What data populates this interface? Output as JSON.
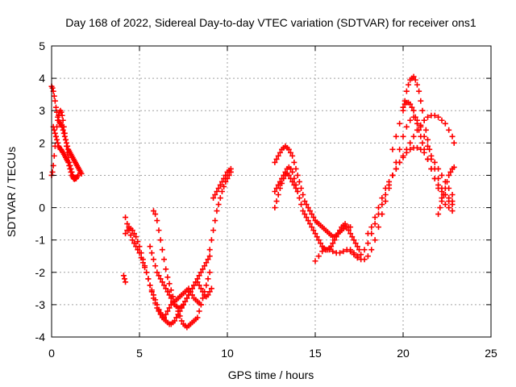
{
  "chart_data": {
    "type": "scatter",
    "title": "Day 168 of 2022, Sidereal Day-to-day VTEC variation (SDTVAR) for receiver ons1",
    "xlabel": "GPS time / hours",
    "ylabel": "SDTVAR / TECUs",
    "xlim": [
      0,
      25
    ],
    "ylim": [
      -4,
      5
    ],
    "xticks": [
      0,
      5,
      10,
      15,
      20,
      25
    ],
    "yticks": [
      -4,
      -3,
      -2,
      -1,
      0,
      1,
      2,
      3,
      4,
      5
    ],
    "grid": true,
    "marker": "+",
    "color": "#ff0000",
    "series": [
      {
        "x": [
          0.0,
          0.05,
          0.1,
          0.15,
          0.2,
          0.25,
          0.3,
          0.35,
          0.4,
          0.45,
          0.5,
          0.55,
          0.6,
          0.65,
          0.7,
          0.75,
          0.8,
          0.85,
          0.9,
          0.95,
          1.0,
          1.05,
          1.1,
          1.15,
          1.2,
          1.25,
          1.3,
          1.35,
          1.4,
          1.45,
          1.5,
          1.55,
          1.6,
          1.65,
          1.7
        ],
        "y": [
          3.75,
          3.7,
          3.6,
          3.45,
          3.3,
          3.1,
          2.95,
          2.8,
          2.7,
          2.65,
          2.6,
          2.55,
          2.5,
          2.4,
          2.3,
          2.2,
          2.1,
          2.0,
          1.9,
          1.8,
          1.75,
          1.7,
          1.65,
          1.6,
          1.55,
          1.5,
          1.45,
          1.4,
          1.35,
          1.3,
          1.25,
          1.2,
          1.15,
          1.1,
          1.05
        ]
      },
      {
        "x": [
          0.0,
          0.05,
          0.1,
          0.15,
          0.2,
          0.25,
          0.3,
          0.35,
          0.4,
          0.45,
          0.5,
          0.55,
          0.6,
          0.65,
          0.7,
          0.75,
          0.8,
          0.85,
          0.9,
          0.95,
          1.0,
          1.05,
          1.1,
          1.15,
          1.2,
          1.25,
          1.3,
          1.35,
          1.4,
          1.45,
          1.5
        ],
        "y": [
          1.0,
          1.1,
          1.3,
          1.6,
          1.9,
          2.2,
          2.5,
          2.7,
          2.85,
          2.95,
          3.0,
          2.95,
          2.85,
          2.7,
          2.5,
          2.3,
          2.1,
          1.9,
          1.7,
          1.55,
          1.4,
          1.3,
          1.2,
          1.1,
          1.0,
          0.95,
          0.92,
          0.9,
          0.9,
          0.95,
          1.0
        ]
      },
      {
        "x": [
          0.1,
          0.15,
          0.2,
          0.25,
          0.3,
          0.35,
          0.4,
          0.45,
          0.5,
          0.55,
          0.6,
          0.65,
          0.7,
          0.75,
          0.8,
          0.85,
          0.9,
          0.95,
          1.0,
          1.05,
          1.1,
          1.15,
          1.2,
          1.25,
          1.3
        ],
        "y": [
          2.5,
          2.4,
          2.3,
          2.2,
          2.1,
          2.0,
          1.9,
          1.85,
          1.8,
          1.8,
          1.75,
          1.7,
          1.65,
          1.6,
          1.55,
          1.5,
          1.45,
          1.4,
          1.3,
          1.2,
          1.1,
          1.0,
          0.95,
          0.9,
          0.88
        ]
      },
      {
        "x": [
          4.2,
          4.3,
          4.4,
          4.5,
          4.6,
          4.7,
          4.8,
          4.9,
          5.0,
          5.1,
          5.2,
          5.3,
          5.4,
          5.5,
          5.6,
          5.7,
          5.8,
          5.9,
          6.0,
          6.1,
          6.2,
          6.3,
          6.4,
          6.5,
          6.6,
          6.7,
          6.8,
          6.9,
          7.0,
          7.1,
          7.2,
          7.3,
          7.4,
          7.5,
          7.6,
          7.7,
          7.8,
          7.9,
          8.0,
          8.1,
          8.2,
          8.3,
          8.4,
          8.5,
          8.6,
          8.7,
          8.8,
          8.9,
          9.0
        ],
        "y": [
          -0.3,
          -0.5,
          -0.7,
          -0.85,
          -1.0,
          -1.1,
          -1.2,
          -1.3,
          -1.4,
          -1.55,
          -1.7,
          -1.85,
          -2.0,
          -2.2,
          -2.4,
          -2.6,
          -2.8,
          -2.95,
          -3.1,
          -3.2,
          -3.3,
          -3.4,
          -3.45,
          -3.5,
          -3.55,
          -3.6,
          -3.6,
          -3.55,
          -3.5,
          -3.4,
          -3.3,
          -3.2,
          -3.1,
          -3.0,
          -2.9,
          -2.8,
          -2.7,
          -2.6,
          -2.5,
          -2.4,
          -2.3,
          -2.2,
          -2.1,
          -2.0,
          -1.9,
          -1.8,
          -1.7,
          -1.6,
          -1.5
        ]
      },
      {
        "x": [
          4.2,
          4.3,
          4.4,
          4.5,
          4.6,
          4.7,
          4.8,
          4.9,
          5.0,
          5.1,
          5.2,
          5.3,
          5.4,
          5.5,
          5.6,
          5.7,
          5.8,
          5.9,
          6.0,
          6.1,
          6.2,
          6.3,
          6.4,
          6.5,
          6.6,
          6.7,
          6.8,
          6.9,
          7.0,
          7.1,
          7.2,
          7.3,
          7.4,
          7.5,
          7.6,
          7.7,
          7.8,
          7.9,
          8.0,
          8.1,
          8.2,
          8.3,
          8.4,
          8.5
        ],
        "y": [
          -0.8,
          -0.7,
          -0.6,
          -0.65,
          -0.7,
          -0.8,
          -0.9,
          -1.05,
          -1.2,
          -1.4,
          -1.6,
          -1.8,
          -2.0,
          -2.2,
          -2.4,
          -2.55,
          -2.7,
          -2.85,
          -3.0,
          -3.15,
          -3.25,
          -3.35,
          -3.4,
          -3.3,
          -3.2,
          -3.1,
          -3.0,
          -2.95,
          -2.9,
          -2.85,
          -2.8,
          -2.75,
          -2.7,
          -2.65,
          -2.6,
          -2.55,
          -2.5,
          -2.6,
          -2.7,
          -2.8,
          -2.85,
          -2.9,
          -2.95,
          -3.0
        ]
      },
      {
        "x": [
          5.6,
          5.7,
          5.8,
          5.9,
          6.0,
          6.1,
          6.2,
          6.3,
          6.4,
          6.5,
          6.6,
          6.7,
          6.8,
          6.9,
          7.0,
          7.1,
          7.2,
          7.3,
          7.4,
          7.5,
          7.6,
          7.7,
          7.8,
          7.9,
          8.0,
          8.1,
          8.2,
          8.3,
          8.4,
          8.5,
          8.6,
          8.7,
          8.8,
          8.9,
          9.0,
          9.1
        ],
        "y": [
          -1.2,
          -1.4,
          -1.6,
          -1.8,
          -2.0,
          -2.1,
          -2.2,
          -2.3,
          -2.4,
          -2.5,
          -2.6,
          -2.7,
          -2.8,
          -2.9,
          -3.0,
          -3.05,
          -3.1,
          -3.1,
          -3.05,
          -3.0,
          -2.9,
          -2.8,
          -2.7,
          -2.6,
          -2.5,
          -2.4,
          -2.3,
          -2.3,
          -2.4,
          -2.5,
          -2.6,
          -2.7,
          -2.75,
          -2.7,
          -2.6,
          -2.5
        ]
      },
      {
        "x": [
          5.8,
          5.9,
          6.0,
          6.1,
          6.2,
          6.3,
          6.4,
          6.5,
          6.6,
          6.7,
          6.8,
          6.9,
          7.0,
          7.1,
          7.2,
          7.3,
          7.4,
          7.5,
          7.6,
          7.7,
          7.8,
          7.9,
          8.0,
          8.1,
          8.2,
          8.3,
          8.4,
          8.5,
          8.6,
          8.7,
          8.8,
          8.9,
          9.0
        ],
        "y": [
          -0.1,
          -0.2,
          -0.4,
          -0.7,
          -1.0,
          -1.3,
          -1.6,
          -1.9,
          -2.15,
          -2.35,
          -2.55,
          -2.75,
          -2.9,
          -3.05,
          -3.2,
          -3.35,
          -3.5,
          -3.6,
          -3.65,
          -3.7,
          -3.65,
          -3.6,
          -3.55,
          -3.5,
          -3.45,
          -3.4,
          -3.2,
          -3.0,
          -2.8,
          -2.6,
          -2.4,
          -2.2,
          -2.0
        ]
      },
      {
        "x": [
          4.1,
          4.15,
          4.2
        ],
        "y": [
          -2.1,
          -2.2,
          -2.3
        ]
      },
      {
        "x": [
          9.2,
          9.3,
          9.4,
          9.5,
          9.6,
          9.7,
          9.8,
          9.9,
          10.0,
          10.1,
          10.2
        ],
        "y": [
          0.3,
          0.4,
          0.5,
          0.6,
          0.7,
          0.8,
          0.9,
          1.0,
          1.1,
          1.15,
          1.2
        ]
      },
      {
        "x": [
          9.0,
          9.1,
          9.2,
          9.3,
          9.4,
          9.5,
          9.6,
          9.7,
          9.8,
          9.9,
          10.0,
          10.1,
          10.2
        ],
        "y": [
          -1.3,
          -1.0,
          -0.7,
          -0.4,
          -0.1,
          0.1,
          0.3,
          0.5,
          0.65,
          0.8,
          0.9,
          1.0,
          1.1
        ]
      },
      {
        "x": [
          12.7,
          12.8,
          12.9,
          13.0,
          13.1,
          13.2,
          13.3,
          13.4,
          13.5,
          13.6,
          13.7,
          13.8,
          13.9,
          14.0,
          14.1,
          14.2,
          14.3,
          14.4,
          14.5,
          14.6,
          14.7,
          14.8,
          14.9,
          15.0,
          15.1,
          15.2,
          15.3,
          15.4,
          15.5,
          15.6,
          15.7,
          15.8,
          15.9,
          16.0,
          16.1,
          16.2,
          16.3,
          16.4,
          16.5,
          16.6,
          16.7,
          16.8,
          16.9,
          17.0
        ],
        "y": [
          1.4,
          1.5,
          1.6,
          1.7,
          1.8,
          1.85,
          1.9,
          1.85,
          1.8,
          1.7,
          1.6,
          1.4,
          1.2,
          1.0,
          0.8,
          0.6,
          0.4,
          0.2,
          0.1,
          0.0,
          -0.1,
          -0.2,
          -0.3,
          -0.4,
          -0.45,
          -0.5,
          -0.55,
          -0.6,
          -0.65,
          -0.7,
          -0.75,
          -0.8,
          -0.85,
          -0.9,
          -0.9,
          -0.85,
          -0.8,
          -0.75,
          -0.7,
          -0.65,
          -0.6,
          -0.6,
          -0.6,
          -0.6
        ]
      },
      {
        "x": [
          12.7,
          12.8,
          12.9,
          13.0,
          13.1,
          13.2,
          13.3,
          13.4,
          13.5,
          13.6,
          13.7,
          13.8,
          13.9,
          14.0,
          14.1,
          14.2,
          14.3,
          14.4,
          14.5,
          14.6,
          14.7,
          14.8,
          14.9,
          15.0,
          15.1,
          15.2,
          15.3,
          15.4,
          15.5,
          15.6,
          15.7,
          15.8,
          15.9,
          16.0,
          16.1,
          16.2,
          16.3,
          16.4,
          16.5,
          16.6,
          16.7,
          16.8,
          16.9,
          17.0,
          17.1,
          17.2,
          17.3,
          17.4,
          17.5
        ],
        "y": [
          0.5,
          0.6,
          0.7,
          0.8,
          0.9,
          1.0,
          1.1,
          1.2,
          1.25,
          1.2,
          1.1,
          0.9,
          0.7,
          0.5,
          0.3,
          0.1,
          -0.1,
          -0.2,
          -0.3,
          -0.4,
          -0.5,
          -0.6,
          -0.7,
          -0.8,
          -0.9,
          -1.0,
          -1.1,
          -1.2,
          -1.25,
          -1.3,
          -1.3,
          -1.25,
          -1.2,
          -1.1,
          -1.0,
          -0.9,
          -0.8,
          -0.7,
          -0.6,
          -0.55,
          -0.5,
          -0.6,
          -0.7,
          -0.8,
          -0.9,
          -1.0,
          -1.1,
          -1.2,
          -1.3
        ]
      },
      {
        "x": [
          12.7,
          12.8,
          12.9,
          13.0,
          13.1,
          13.2,
          13.3,
          13.4,
          13.5,
          13.6,
          13.7,
          13.8,
          13.9,
          14.0
        ],
        "y": [
          0.0,
          0.2,
          0.4,
          0.6,
          0.75,
          0.9,
          1.0,
          1.05,
          1.0,
          0.9,
          0.8,
          0.7,
          0.6,
          0.5
        ]
      },
      {
        "x": [
          15.0,
          15.2,
          15.4,
          15.6,
          15.8,
          16.0,
          16.2,
          16.4,
          16.6,
          16.8,
          17.0,
          17.2,
          17.4,
          17.6,
          17.8,
          18.0,
          18.2,
          18.4,
          18.6,
          18.8,
          19.0,
          19.2,
          19.4,
          19.6,
          19.8,
          20.0,
          20.2,
          20.4,
          20.6,
          20.8,
          21.0,
          21.2,
          21.4,
          21.6,
          21.8,
          22.0,
          22.2,
          22.4,
          22.6,
          22.8
        ],
        "y": [
          -1.65,
          -1.5,
          -1.35,
          -1.3,
          -1.3,
          -1.35,
          -1.4,
          -1.4,
          -1.35,
          -1.3,
          -1.35,
          -1.45,
          -1.55,
          -1.6,
          -1.6,
          -1.5,
          -1.3,
          -1.0,
          -0.6,
          -0.2,
          0.2,
          0.6,
          1.0,
          1.4,
          1.8,
          2.2,
          2.5,
          2.7,
          2.8,
          2.7,
          2.5,
          2.2,
          1.9,
          1.6,
          1.4,
          1.2,
          1.0,
          0.8,
          0.6,
          0.4
        ]
      },
      {
        "x": [
          17.0,
          17.2,
          17.4,
          17.6,
          17.8,
          18.0,
          18.2,
          18.4,
          18.6,
          18.8,
          19.0,
          19.2,
          19.4,
          19.6,
          19.8,
          20.0,
          20.2,
          20.4,
          20.6,
          20.8,
          21.0,
          21.2,
          21.4,
          21.6,
          21.8,
          22.0,
          22.2,
          22.4,
          22.6,
          22.8,
          22.9
        ],
        "y": [
          -1.3,
          -1.4,
          -1.5,
          -1.45,
          -1.3,
          -1.1,
          -0.8,
          -0.5,
          -0.2,
          0.1,
          0.4,
          0.7,
          1.0,
          1.2,
          1.4,
          1.6,
          1.8,
          2.0,
          2.2,
          2.4,
          2.55,
          2.7,
          2.8,
          2.85,
          2.85,
          2.8,
          2.7,
          2.6,
          2.4,
          2.2,
          2.0
        ]
      },
      {
        "x": [
          18.0,
          18.2,
          18.4,
          18.6,
          18.8,
          19.0,
          19.2,
          19.4,
          19.6,
          19.8,
          20.0,
          20.2,
          20.4,
          20.6,
          20.8,
          21.0,
          21.2,
          21.4,
          21.6,
          21.8,
          22.0,
          22.2,
          22.4,
          22.6,
          22.8
        ],
        "y": [
          -0.8,
          -0.6,
          -0.3,
          0.0,
          0.3,
          0.6,
          0.8,
          1.0,
          1.2,
          1.4,
          1.55,
          1.7,
          1.8,
          1.85,
          1.85,
          1.8,
          1.7,
          1.5,
          1.2,
          0.9,
          0.6,
          0.3,
          0.1,
          0.0,
          -0.1
        ]
      },
      {
        "x": [
          19.4,
          19.6,
          19.8,
          20.0,
          20.1,
          20.2,
          20.3,
          20.4,
          20.5,
          20.6,
          20.7,
          20.8,
          20.9,
          21.0,
          21.1,
          21.2,
          21.3,
          21.4,
          21.5,
          21.6,
          21.8,
          22.0,
          22.2,
          22.4,
          22.6,
          22.8
        ],
        "y": [
          1.8,
          2.2,
          2.6,
          3.0,
          3.3,
          3.6,
          3.8,
          3.95,
          4.0,
          4.05,
          3.95,
          3.8,
          3.6,
          3.3,
          3.0,
          2.7,
          2.4,
          2.1,
          1.8,
          1.5,
          1.2,
          0.9,
          0.6,
          0.4,
          0.2,
          0.1
        ]
      },
      {
        "x": [
          20.0,
          20.1,
          20.2,
          20.3,
          20.4,
          20.5,
          20.6,
          20.7,
          20.8,
          20.9,
          21.0,
          21.1,
          21.2,
          21.4,
          21.6,
          21.8,
          22.0,
          22.2,
          22.4,
          22.6,
          22.8
        ],
        "y": [
          3.1,
          3.2,
          3.25,
          3.25,
          3.2,
          3.1,
          3.0,
          2.8,
          2.6,
          2.4,
          2.2,
          2.0,
          1.8,
          1.5,
          1.2,
          0.9,
          0.7,
          0.5,
          0.4,
          0.3,
          0.2
        ]
      },
      {
        "x": [
          22.0,
          22.1,
          22.2,
          22.3,
          22.4,
          22.5,
          22.6,
          22.7,
          22.8,
          22.9
        ],
        "y": [
          -0.2,
          0.0,
          0.2,
          0.4,
          0.6,
          0.8,
          1.0,
          1.1,
          1.2,
          1.25
        ]
      }
    ]
  }
}
